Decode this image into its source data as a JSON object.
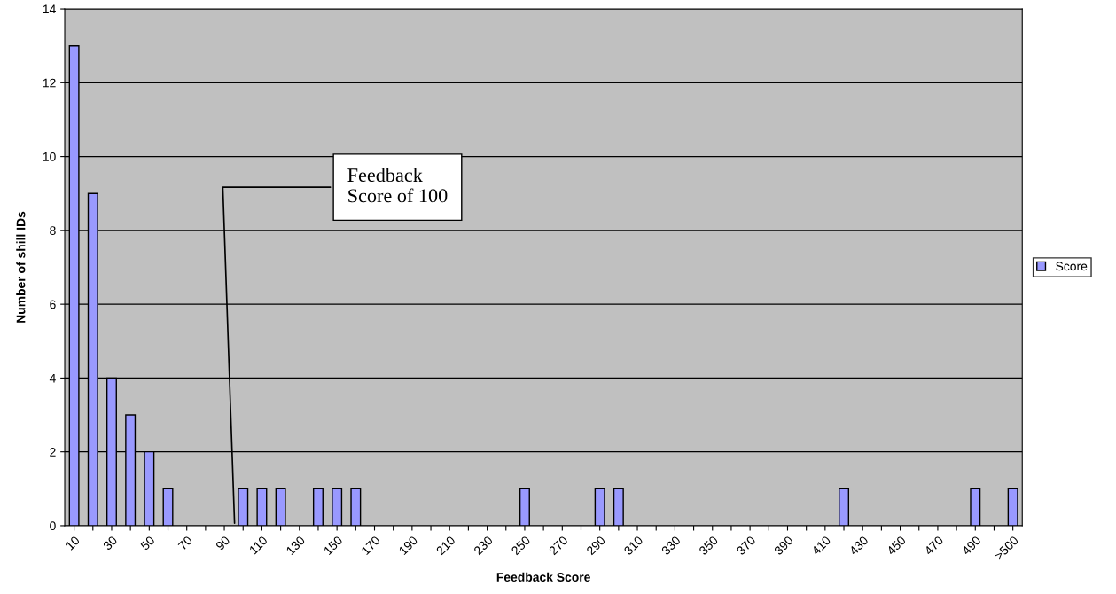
{
  "chart_data": {
    "type": "bar",
    "xlabel": "Feedback Score",
    "ylabel": "Number of shill IDs",
    "categories": [
      "10",
      null,
      "30",
      null,
      "50",
      null,
      "70",
      null,
      "90",
      null,
      "110",
      null,
      "130",
      null,
      "150",
      null,
      "170",
      null,
      "190",
      null,
      "210",
      null,
      "230",
      null,
      "250",
      null,
      "270",
      null,
      "290",
      null,
      "310",
      null,
      "330",
      null,
      "350",
      null,
      "370",
      null,
      "390",
      null,
      "410",
      null,
      "430",
      null,
      "450",
      null,
      "470",
      null,
      "490",
      null,
      ">500"
    ],
    "series": [
      {
        "name": "Score",
        "color": "#9999ff",
        "values": [
          13,
          9,
          4,
          3,
          2,
          1,
          0,
          0,
          0,
          1,
          1,
          1,
          0,
          1,
          1,
          1,
          0,
          0,
          0,
          0,
          0,
          0,
          0,
          0,
          1,
          0,
          0,
          0,
          1,
          1,
          0,
          0,
          0,
          0,
          0,
          0,
          0,
          0,
          0,
          0,
          0,
          1,
          0,
          0,
          0,
          0,
          0,
          0,
          1,
          0,
          1
        ]
      }
    ],
    "ylim": [
      0,
      14
    ],
    "yticks": [
      0,
      2,
      4,
      6,
      8,
      10,
      12,
      14
    ],
    "grid": "y",
    "legend": "right",
    "annotations": [
      "Feedback\nScore of 100"
    ]
  }
}
